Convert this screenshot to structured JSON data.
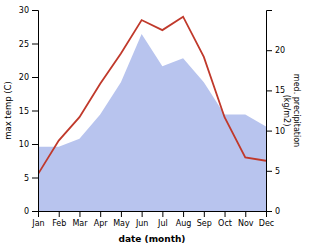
{
  "chart_data": {
    "type": "line",
    "categories": [
      "Jan",
      "Feb",
      "Mar",
      "Apr",
      "May",
      "Jun",
      "Jul",
      "Aug",
      "Sep",
      "Oct",
      "Nov",
      "Dec"
    ],
    "xlabel": "date (month)",
    "ylabel": "max temp (C)",
    "y2label": "med. precipitation\n(kg/m2)",
    "ylim": [
      0,
      30
    ],
    "yticks": [
      0,
      5,
      10,
      15,
      20,
      25,
      30
    ],
    "y2lim": [
      0,
      25
    ],
    "y2ticks": [
      0,
      5,
      10,
      15,
      20
    ],
    "series": [
      {
        "type": "area",
        "axis": "y2",
        "color": "#b8c4ee",
        "values": [
          8.0,
          8.0,
          9.0,
          12.0,
          16.0,
          22.0,
          18.0,
          19.0,
          16.0,
          12.0,
          12.0,
          10.5
        ]
      },
      {
        "type": "line",
        "color": "#c0392b",
        "values": [
          5.5,
          10.5,
          14.0,
          19.0,
          23.5,
          28.5,
          27.0,
          29.0,
          23.0,
          14.0,
          8.0,
          7.5
        ]
      }
    ]
  }
}
